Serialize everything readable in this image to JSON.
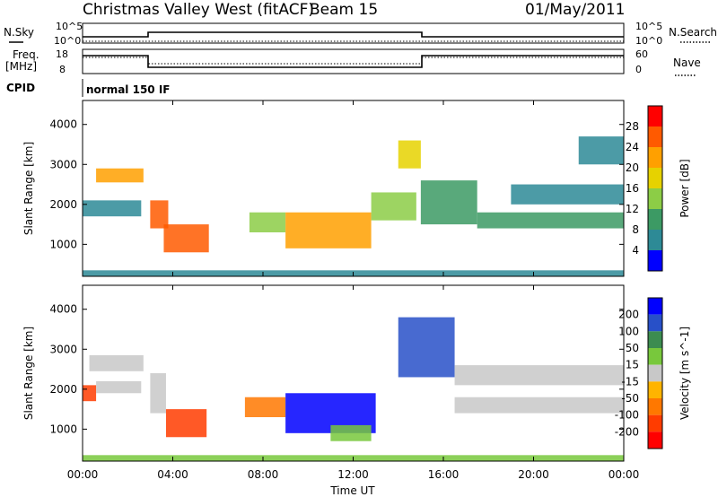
{
  "header": {
    "radar": "Christmas Valley West (fitACF)",
    "beam": "Beam 15",
    "date": "01/May/2011"
  },
  "status_panels": {
    "nsky_label": "N.Sky",
    "nsearch_label": "N.Search",
    "freq_label_line1": "Freq.",
    "freq_label_line2": "[MHz]",
    "nave_label": "Nave",
    "cpid_label": "CPID",
    "cpid_value": "normal 150 IF",
    "noise_ticks_left": [
      "10^5",
      "10^0"
    ],
    "noise_ticks_right": [
      "10^5",
      "10^0"
    ],
    "freq_ticks": [
      "18",
      "8"
    ],
    "nave_ticks": [
      "60",
      "0"
    ]
  },
  "chart_data": [
    {
      "type": "heatmap",
      "panel": "power",
      "title": "",
      "xlabel": "",
      "ylabel": "Slant Range [km]",
      "x_range_hours": [
        0,
        24
      ],
      "ylim": [
        200,
        4600
      ],
      "y_ticks": [
        "1000",
        "2000",
        "3000",
        "4000"
      ],
      "colorbar": {
        "label": "Power [dB]",
        "tick_labels": [
          "28",
          "24",
          "20",
          "16",
          "12",
          "8",
          "4"
        ],
        "colors": [
          "#ff0000",
          "#ff5a00",
          "#ffa000",
          "#e6d200",
          "#8ccd46",
          "#3c9a64",
          "#2d8a96",
          "#0000ff"
        ]
      },
      "regions": [
        {
          "t0": 0.6,
          "t1": 2.7,
          "r0": 2550,
          "r1": 2900,
          "value": 20
        },
        {
          "t0": 0.0,
          "t1": 2.6,
          "r0": 1700,
          "r1": 2100,
          "value": 6
        },
        {
          "t0": 3.0,
          "t1": 3.8,
          "r0": 1400,
          "r1": 2100,
          "value": 24
        },
        {
          "t0": 3.6,
          "t1": 5.6,
          "r0": 800,
          "r1": 1500,
          "value": 26
        },
        {
          "t0": 7.4,
          "t1": 9.0,
          "r0": 1300,
          "r1": 1800,
          "value": 14
        },
        {
          "t0": 9.0,
          "t1": 12.8,
          "r0": 900,
          "r1": 1800,
          "value": 22
        },
        {
          "t0": 12.8,
          "t1": 14.8,
          "r0": 1600,
          "r1": 2300,
          "value": 12
        },
        {
          "t0": 14.0,
          "t1": 15.0,
          "r0": 2900,
          "r1": 3600,
          "value": 18
        },
        {
          "t0": 15.0,
          "t1": 17.5,
          "r0": 1500,
          "r1": 2600,
          "value": 8
        },
        {
          "t0": 17.5,
          "t1": 24.0,
          "r0": 1400,
          "r1": 1800,
          "value": 10
        },
        {
          "t0": 19.0,
          "t1": 24.0,
          "r0": 2000,
          "r1": 2500,
          "value": 5
        },
        {
          "t0": 22.0,
          "t1": 24.0,
          "r0": 3000,
          "r1": 3700,
          "value": 4
        },
        {
          "t0": 0.0,
          "t1": 24.0,
          "r0": 200,
          "r1": 350,
          "value": 6
        }
      ]
    },
    {
      "type": "heatmap",
      "panel": "velocity",
      "title": "",
      "xlabel": "Time UT",
      "ylabel": "Slant Range [km]",
      "x_range_hours": [
        0,
        24
      ],
      "x_ticks": [
        "00:00",
        "04:00",
        "08:00",
        "12:00",
        "16:00",
        "20:00",
        "00:00"
      ],
      "ylim": [
        200,
        4600
      ],
      "y_ticks": [
        "1000",
        "2000",
        "3000",
        "4000"
      ],
      "colorbar": {
        "label": "Velocity [m s^-1]",
        "tick_labels": [
          "200",
          "100",
          "50",
          "15",
          "-15",
          "-50",
          "-100",
          "-200"
        ],
        "colors": [
          "#0000ff",
          "#2850c8",
          "#3c8c50",
          "#78c83c",
          "#c8c8c8",
          "#ffb400",
          "#ff7800",
          "#ff3c00",
          "#ff0000"
        ]
      },
      "regions": [
        {
          "t0": 0.3,
          "t1": 2.7,
          "r0": 2450,
          "r1": 2850,
          "value": 0
        },
        {
          "t0": 0.0,
          "t1": 0.6,
          "r0": 1700,
          "r1": 2100,
          "value": -200
        },
        {
          "t0": 0.6,
          "t1": 2.6,
          "r0": 1900,
          "r1": 2200,
          "value": 0
        },
        {
          "t0": 3.0,
          "t1": 3.7,
          "r0": 1400,
          "r1": 2400,
          "value": 0
        },
        {
          "t0": 3.7,
          "t1": 5.5,
          "r0": 800,
          "r1": 1500,
          "value": -150
        },
        {
          "t0": 7.2,
          "t1": 9.0,
          "r0": 1300,
          "r1": 1800,
          "value": -60
        },
        {
          "t0": 9.0,
          "t1": 13.0,
          "r0": 900,
          "r1": 1900,
          "value": 200
        },
        {
          "t0": 11.0,
          "t1": 12.8,
          "r0": 700,
          "r1": 1100,
          "value": 40
        },
        {
          "t0": 14.0,
          "t1": 16.5,
          "r0": 2300,
          "r1": 3800,
          "value": 180
        },
        {
          "t0": 16.5,
          "t1": 24.0,
          "r0": 1400,
          "r1": 1800,
          "value": 0
        },
        {
          "t0": 16.5,
          "t1": 24.0,
          "r0": 2100,
          "r1": 2600,
          "value": 0
        },
        {
          "t0": 0.0,
          "t1": 24.0,
          "r0": 200,
          "r1": 350,
          "value": 30
        }
      ]
    }
  ]
}
